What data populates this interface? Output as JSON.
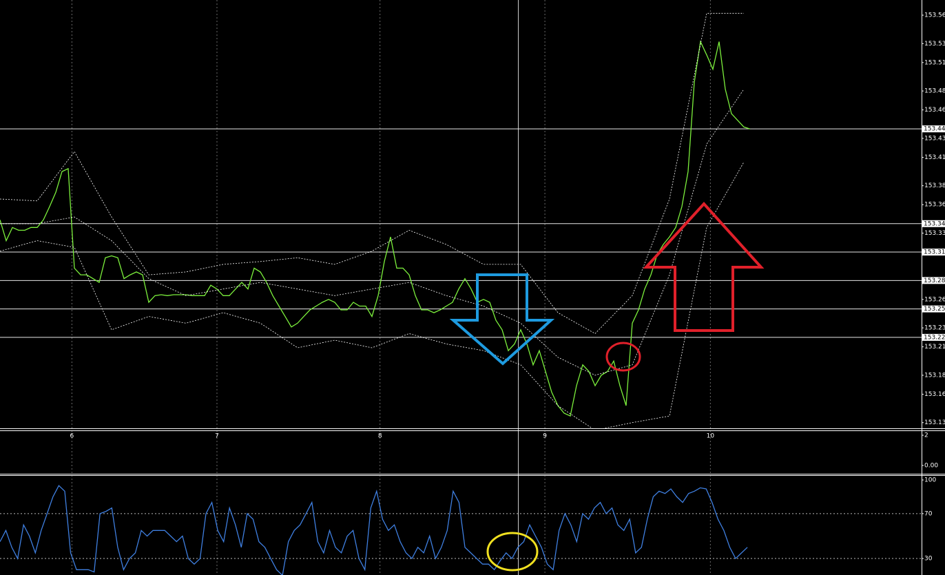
{
  "chart_data": [
    {
      "type": "line",
      "xlim": [
        0,
        148.67
      ],
      "ylim": [
        153.124,
        153.576
      ],
      "xticks": [
        {
          "value": 11.6,
          "label": "6"
        },
        {
          "value": 35,
          "label": "7"
        },
        {
          "value": 61.3,
          "label": "8"
        },
        {
          "value": 87.9,
          "label": "9"
        },
        {
          "value": 114.6,
          "label": "10"
        }
      ],
      "yticks": [
        153.56,
        153.53,
        153.51,
        153.48,
        153.46,
        153.43,
        153.41,
        153.38,
        153.36,
        153.33,
        153.31,
        153.26,
        153.23,
        153.21,
        153.18,
        153.16,
        153.13
      ],
      "hlines": [
        153.44,
        153.34,
        153.31,
        153.28,
        153.25,
        153.22
      ],
      "series": [
        {
          "color": "#7cf03c",
          "values": [
            153.344,
            153.322,
            153.336,
            153.333,
            153.333,
            153.336,
            153.336,
            153.344,
            153.358,
            153.373,
            153.395,
            153.398,
            153.293,
            153.286,
            153.286,
            153.282,
            153.278,
            153.304,
            153.306,
            153.304,
            153.282,
            153.286,
            153.289,
            153.286,
            153.257,
            153.264,
            153.265,
            153.264,
            153.265,
            153.265,
            153.265,
            153.264,
            153.264,
            153.264,
            153.275,
            153.271,
            153.264,
            153.264,
            153.271,
            153.278,
            153.271,
            153.293,
            153.289,
            153.278,
            153.264,
            153.253,
            153.242,
            153.231,
            153.235,
            153.242,
            153.249,
            153.253,
            153.257,
            153.26,
            153.257,
            153.249,
            153.249,
            153.257,
            153.253,
            153.253,
            153.242,
            153.264,
            153.3,
            153.326,
            153.293,
            153.293,
            153.286,
            153.264,
            153.249,
            153.249,
            153.246,
            153.249,
            153.253,
            153.257,
            153.271,
            153.282,
            153.271,
            153.257,
            153.26,
            153.257,
            153.238,
            153.228,
            153.206,
            153.213,
            153.228,
            153.213,
            153.191,
            153.206,
            153.184,
            153.162,
            153.148,
            153.14,
            153.137,
            153.169,
            153.191,
            153.184,
            153.169,
            153.18,
            153.184,
            153.195,
            153.169,
            153.148,
            153.235,
            153.249,
            153.271,
            153.286,
            153.307,
            153.318,
            153.326,
            153.336,
            153.358,
            153.395,
            153.489,
            153.532,
            153.518,
            153.503,
            153.532,
            153.482,
            153.456,
            153.449,
            153.442,
            153.44
          ]
        },
        {
          "color": "#ffffff",
          "dashed": true,
          "x": [
            0,
            6,
            12,
            18,
            24,
            30,
            36,
            42,
            48,
            54,
            60,
            66,
            72,
            78,
            84,
            90,
            96,
            102,
            108,
            114,
            120
          ],
          "values": [
            153.366,
            153.364,
            153.416,
            153.347,
            153.286,
            153.289,
            153.297,
            153.3,
            153.304,
            153.297,
            153.311,
            153.333,
            153.318,
            153.297,
            153.297,
            153.246,
            153.224,
            153.264,
            153.366,
            153.562,
            153.562
          ]
        },
        {
          "color": "#ffffff",
          "dashed": true,
          "x": [
            0,
            6,
            12,
            18,
            24,
            30,
            36,
            42,
            48,
            54,
            60,
            66,
            72,
            78,
            84,
            90,
            96,
            102,
            108,
            114,
            120
          ],
          "values": [
            153.34,
            153.34,
            153.347,
            153.322,
            153.282,
            153.264,
            153.271,
            153.278,
            153.271,
            153.264,
            153.271,
            153.278,
            153.264,
            153.253,
            153.235,
            153.199,
            153.18,
            153.191,
            153.286,
            153.424,
            153.482
          ]
        },
        {
          "color": "#ffffff",
          "dashed": true,
          "x": [
            0,
            6,
            12,
            18,
            24,
            30,
            36,
            42,
            48,
            54,
            60,
            66,
            72,
            78,
            84,
            90,
            96,
            102,
            108,
            114,
            120
          ],
          "values": [
            153.311,
            153.322,
            153.315,
            153.228,
            153.242,
            153.235,
            153.246,
            153.235,
            153.209,
            153.217,
            153.209,
            153.224,
            153.213,
            153.206,
            153.191,
            153.148,
            153.122,
            153.13,
            153.137,
            153.336,
            153.405
          ]
        }
      ]
    },
    {
      "type": "line",
      "ylim": [
        -0.55,
        2.32
      ],
      "yticks": [
        2,
        {
          "value": 0,
          "label": "0.00"
        }
      ]
    },
    {
      "type": "line",
      "xlim": [
        0,
        156.6
      ],
      "ylim": [
        15.3,
        104.3
      ],
      "yticks": [
        100,
        70,
        30
      ],
      "levels": [
        70,
        30
      ],
      "series": [
        {
          "color": "#3f7fe0",
          "values": [
            45,
            55,
            40,
            30,
            60,
            50,
            35,
            55,
            70,
            85,
            95,
            90,
            35,
            20,
            20,
            20,
            18,
            70,
            72,
            75,
            40,
            20,
            30,
            35,
            55,
            50,
            55,
            55,
            55,
            50,
            45,
            50,
            30,
            25,
            30,
            70,
            80,
            55,
            45,
            75,
            60,
            40,
            70,
            65,
            45,
            40,
            30,
            20,
            15,
            45,
            55,
            60,
            70,
            80,
            45,
            35,
            55,
            40,
            35,
            50,
            55,
            30,
            20,
            75,
            90,
            65,
            55,
            60,
            45,
            35,
            30,
            40,
            35,
            50,
            30,
            40,
            55,
            90,
            80,
            40,
            35,
            30,
            25,
            25,
            20,
            28,
            35,
            30,
            40,
            45,
            60,
            50,
            40,
            25,
            20,
            55,
            70,
            60,
            45,
            70,
            65,
            75,
            80,
            70,
            75,
            60,
            55,
            65,
            35,
            40,
            65,
            85,
            90,
            88,
            92,
            85,
            80,
            88,
            90,
            93,
            92,
            80,
            65,
            55,
            40,
            30,
            35,
            40
          ]
        }
      ]
    }
  ]
}
